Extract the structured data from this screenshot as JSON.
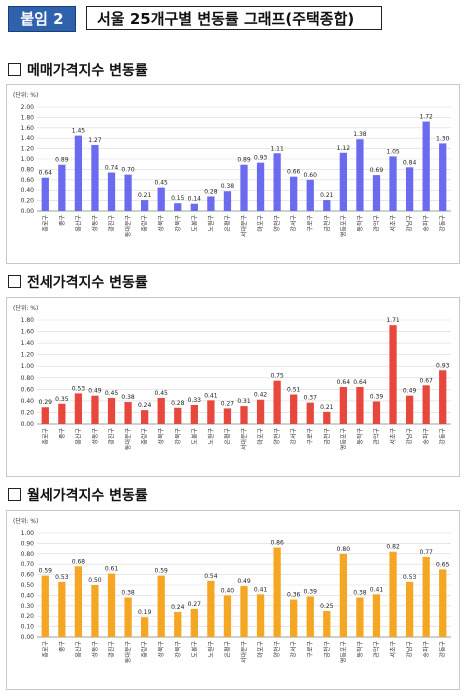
{
  "header": {
    "badge": "붙임 2",
    "title": "서울 25개구별 변동률 그래프(주택종합)"
  },
  "sections": [
    {
      "title": "메매가격지수 변동률"
    },
    {
      "title": "전세가격지수 변동률"
    },
    {
      "title": "월세가격지수 변동률"
    }
  ],
  "chart_data": [
    {
      "type": "bar",
      "unit": "(단위: %)",
      "color": "#6b6bf0",
      "categories": [
        "종로구",
        "중구",
        "용산구",
        "성동구",
        "광진구",
        "동대문구",
        "중랑구",
        "성북구",
        "강북구",
        "도봉구",
        "노원구",
        "은평구",
        "서대문구",
        "마포구",
        "양천구",
        "강서구",
        "구로구",
        "금천구",
        "영등포구",
        "동작구",
        "관악구",
        "서초구",
        "강남구",
        "송파구",
        "강동구"
      ],
      "values": [
        0.64,
        0.89,
        1.45,
        1.27,
        0.74,
        0.7,
        0.21,
        0.45,
        0.15,
        0.14,
        0.28,
        0.38,
        0.89,
        0.93,
        1.11,
        0.66,
        0.6,
        0.21,
        1.12,
        1.38,
        0.69,
        1.05,
        0.84,
        1.72,
        1.3
      ],
      "labels": [
        "0.64",
        "0.89",
        "1.45",
        "1.27",
        "0.74",
        "0.70",
        "0.21",
        "0.45",
        "0.15",
        "0.14",
        "0.28",
        "0.38",
        "0.89",
        "0.93",
        "1.11",
        "0.66",
        "0.60",
        "0.21",
        "1.12",
        "1.38",
        "0.69",
        "1.05",
        "0.84",
        "1.72",
        "1.30"
      ],
      "ylim": [
        0,
        2.0
      ],
      "yticks": [
        "0.00",
        "0.20",
        "0.40",
        "0.60",
        "0.80",
        "1.00",
        "1.20",
        "1.40",
        "1.60",
        "1.80",
        "2.00"
      ],
      "grid": true
    },
    {
      "type": "bar",
      "unit": "(단위: %)",
      "color": "#e8473e",
      "categories": [
        "종로구",
        "중구",
        "용산구",
        "성동구",
        "광진구",
        "동대문구",
        "중랑구",
        "성북구",
        "강북구",
        "도봉구",
        "노원구",
        "은평구",
        "서대문구",
        "마포구",
        "양천구",
        "강서구",
        "구로구",
        "금천구",
        "영등포구",
        "동작구",
        "관악구",
        "서초구",
        "강남구",
        "송파구",
        "강동구"
      ],
      "values": [
        0.29,
        0.35,
        0.53,
        0.49,
        0.45,
        0.38,
        0.24,
        0.45,
        0.28,
        0.33,
        0.41,
        0.27,
        0.31,
        0.42,
        0.75,
        0.51,
        0.37,
        0.21,
        0.64,
        0.64,
        0.39,
        1.71,
        0.49,
        0.67,
        0.93
      ],
      "labels": [
        "0.29",
        "0.35",
        "0.53",
        "0.49",
        "0.45",
        "0.38",
        "0.24",
        "0.45",
        "0.28",
        "0.33",
        "0.41",
        "0.27",
        "0.31",
        "0.42",
        "0.75",
        "0.51",
        "0.37",
        "0.21",
        "0.64",
        "0.64",
        "0.39",
        "1.71",
        "0.49",
        "0.67",
        "0.93"
      ],
      "ylim": [
        0,
        1.8
      ],
      "yticks": [
        "0.00",
        "0.20",
        "0.40",
        "0.60",
        "0.80",
        "1.00",
        "1.20",
        "1.40",
        "1.60",
        "1.80"
      ],
      "grid": true
    },
    {
      "type": "bar",
      "unit": "(단위: %)",
      "color": "#f5a623",
      "categories": [
        "종로구",
        "중구",
        "용산구",
        "성동구",
        "광진구",
        "동대문구",
        "중랑구",
        "성북구",
        "강북구",
        "도봉구",
        "노원구",
        "은평구",
        "서대문구",
        "마포구",
        "양천구",
        "강서구",
        "구로구",
        "금천구",
        "영등포구",
        "동작구",
        "관악구",
        "서초구",
        "강남구",
        "송파구",
        "강동구"
      ],
      "values": [
        0.59,
        0.53,
        0.68,
        0.5,
        0.61,
        0.38,
        0.19,
        0.59,
        0.24,
        0.27,
        0.54,
        0.4,
        0.49,
        0.41,
        0.86,
        0.36,
        0.39,
        0.25,
        0.8,
        0.38,
        0.41,
        0.82,
        0.53,
        0.77,
        0.65
      ],
      "labels": [
        "0.59",
        "0.53",
        "0.68",
        "0.50",
        "0.61",
        "0.38",
        "0.19",
        "0.59",
        "0.24",
        "0.27",
        "0.54",
        "0.40",
        "0.49",
        "0.41",
        "0.86",
        "0.36",
        "0.39",
        "0.25",
        "0.80",
        "0.38",
        "0.41",
        "0.82",
        "0.53",
        "0.77",
        "0.65"
      ],
      "ylim": [
        0,
        1.0
      ],
      "yticks": [
        "0.00",
        "0.10",
        "0.20",
        "0.30",
        "0.40",
        "0.50",
        "0.60",
        "0.70",
        "0.80",
        "0.90",
        "1.00"
      ],
      "grid": true
    }
  ]
}
